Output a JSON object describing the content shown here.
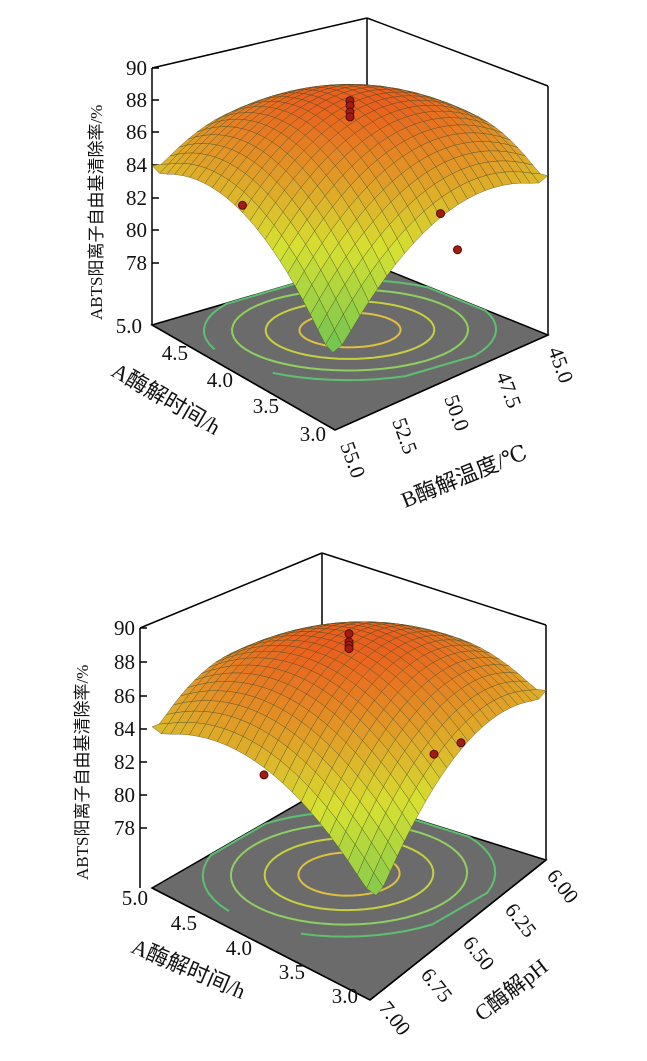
{
  "chart_data": [
    {
      "type": "surface3d",
      "zlabel": "ABTS阳离子自由基清除率/%",
      "xlabel": "A酶解时间/h",
      "ylabel": "B酶解温度/℃",
      "zlim": [
        76,
        90
      ],
      "z_ticks": [
        "78",
        "80",
        "82",
        "84",
        "86",
        "88",
        "90"
      ],
      "x_ticks": [
        "3.0",
        "3.5",
        "4.0",
        "4.5",
        "5.0"
      ],
      "y_ticks": [
        "55.0",
        "52.5",
        "50.0",
        "47.5",
        "45.0"
      ],
      "xlim": [
        3.0,
        5.0
      ],
      "ylim": [
        45.0,
        55.0
      ],
      "surface": {
        "peak": 88.1,
        "corner_a3_b55": 77.0,
        "corner_a5_b55": 84.0,
        "corner_a3_b45": 84.0,
        "corner_a5_b45": 82.0
      },
      "points": [
        {
          "label": "",
          "x": 4.0,
          "y": 50.0,
          "z": 88.3
        },
        {
          "label": "",
          "x": 4.0,
          "y": 50.0,
          "z": 88.0
        },
        {
          "label": "",
          "x": 4.0,
          "y": 50.0,
          "z": 87.6
        },
        {
          "label": "",
          "x": 4.0,
          "y": 50.0,
          "z": 87.3
        },
        {
          "label": "",
          "x": 5.0,
          "y": 50.0,
          "z": 83.8
        },
        {
          "label": "",
          "x": 4.0,
          "y": 45.0,
          "z": 83.6
        },
        {
          "label": "",
          "x": 3.0,
          "y": 50.0,
          "z": 77.2
        }
      ],
      "grid": true
    },
    {
      "type": "surface3d",
      "zlabel": "ABTS阳离子自由基清除率/%",
      "xlabel": "A酶解时间/h",
      "ylabel": "C酶解pH",
      "zlim": [
        76,
        90
      ],
      "z_ticks": [
        "78",
        "80",
        "82",
        "84",
        "86",
        "88",
        "90"
      ],
      "x_ticks": [
        "3.0",
        "3.5",
        "4.0",
        "4.5",
        "5.0"
      ],
      "y_ticks": [
        "7.00",
        "6.75",
        "6.50",
        "6.25",
        "6.00"
      ],
      "xlim": [
        3.0,
        5.0
      ],
      "ylim": [
        6.0,
        7.0
      ],
      "surface": {
        "peak": 88.0,
        "corner_a3_c7": 78.0,
        "corner_a5_c7": 84.0,
        "corner_a3_c6": 84.5,
        "corner_a5_c6": 82.0
      },
      "points": [
        {
          "label": "",
          "x": 4.0,
          "y": 6.5,
          "z": 88.8
        },
        {
          "label": "",
          "x": 4.0,
          "y": 6.5,
          "z": 88.3
        },
        {
          "label": "",
          "x": 4.0,
          "y": 6.5,
          "z": 88.1
        },
        {
          "label": "",
          "x": 4.0,
          "y": 6.5,
          "z": 87.9
        },
        {
          "label": "",
          "x": 5.0,
          "y": 6.5,
          "z": 83.2
        },
        {
          "label": "",
          "x": 4.0,
          "y": 6.0,
          "z": 84.3
        },
        {
          "label": "",
          "x": 3.0,
          "y": 6.5,
          "z": 78.5
        }
      ],
      "grid": true
    }
  ]
}
